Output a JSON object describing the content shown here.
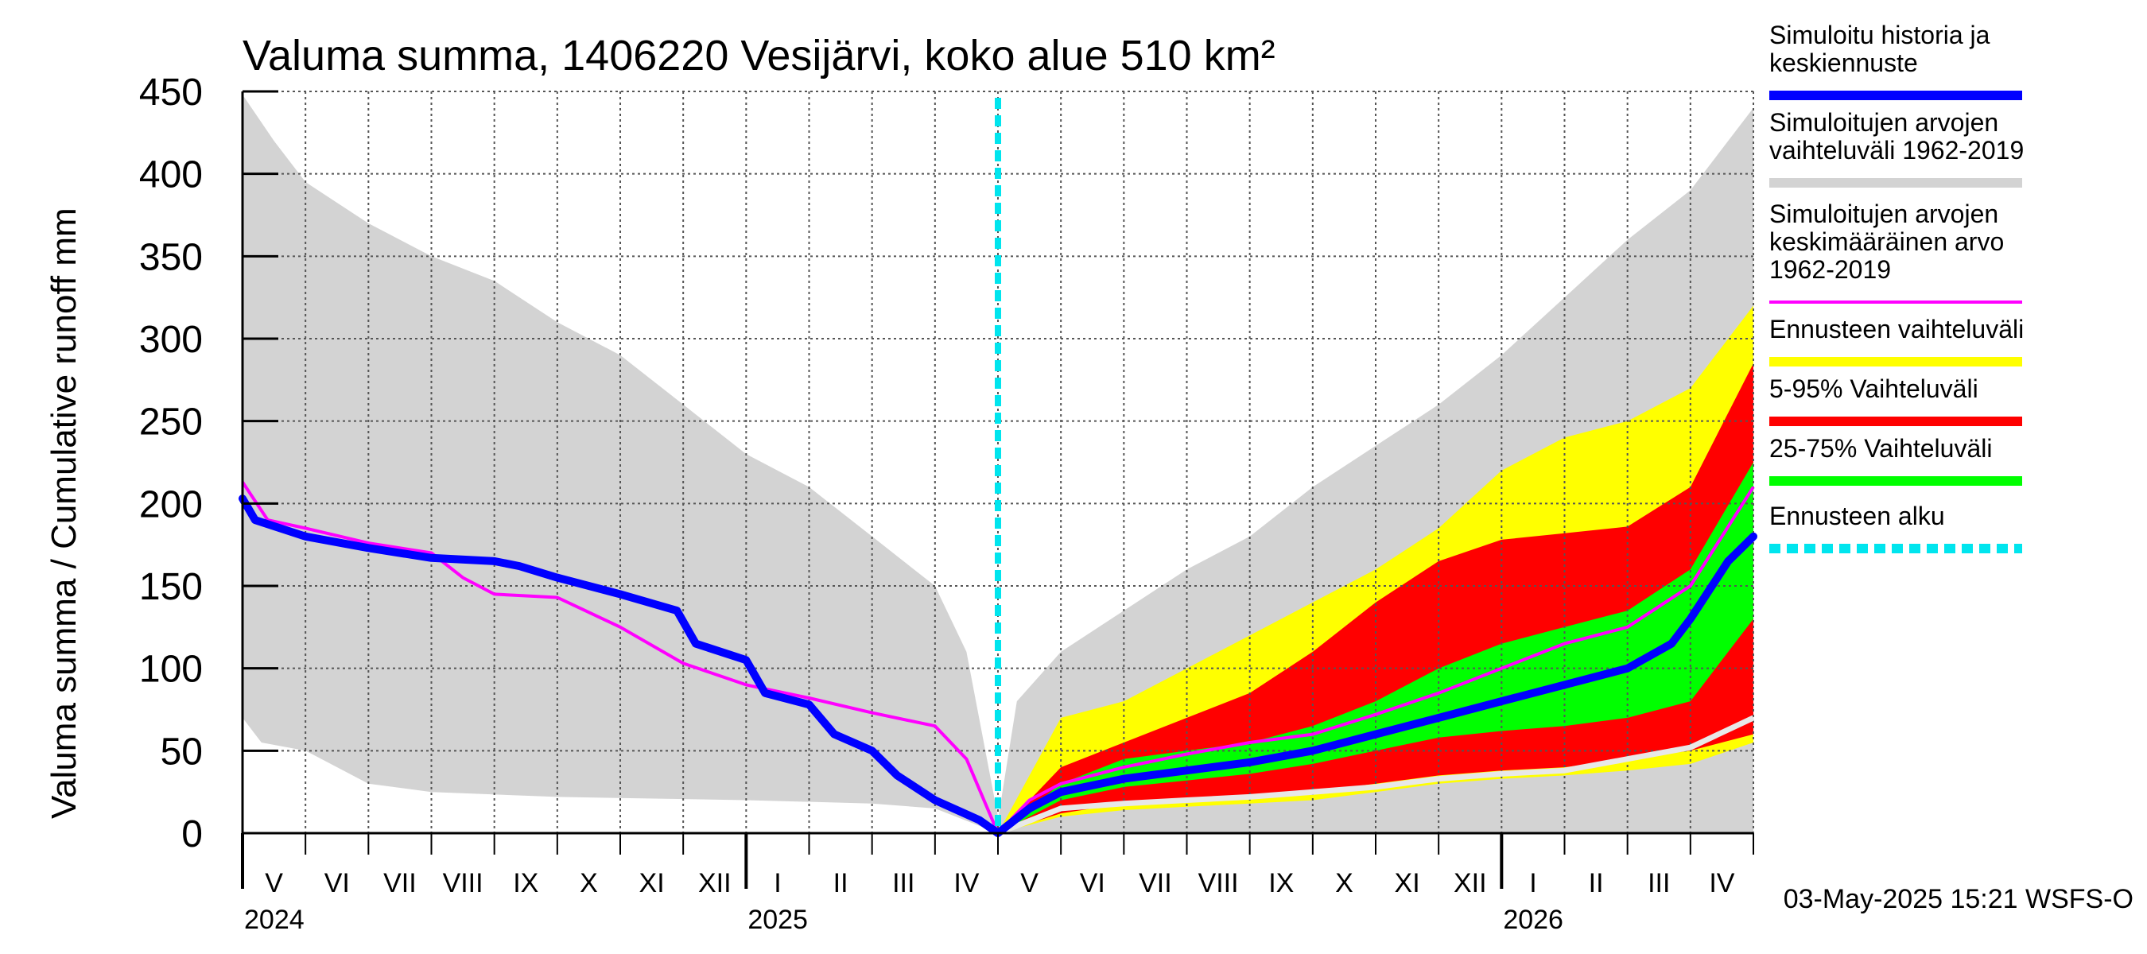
{
  "chart_data": {
    "type": "area",
    "title": "Valuma summa, 1406220 Vesijärvi, koko alue 510 km²",
    "ylabel": "Valuma summa / Cumulative runoff    mm",
    "ylim": [
      0,
      450
    ],
    "yticks": [
      0,
      50,
      100,
      150,
      200,
      250,
      300,
      350,
      400,
      450
    ],
    "x_start": "2024-05-01",
    "x_end": "2026-05-01",
    "forecast_start": "2025-05-01",
    "months": [
      "V",
      "VI",
      "VII",
      "VIII",
      "IX",
      "X",
      "XI",
      "XII",
      "I",
      "II",
      "III",
      "IV",
      "V",
      "VI",
      "VII",
      "VIII",
      "IX",
      "X",
      "XI",
      "XII",
      "I",
      "II",
      "III",
      "IV"
    ],
    "years": [
      "2024",
      "2025",
      "2026"
    ],
    "timestamp": "03-May-2025 15:21 WSFS-O",
    "series": [
      {
        "name": "hist_range_upper",
        "color": "#d3d3d3",
        "values": [
          [
            0,
            448
          ],
          [
            0.5,
            420
          ],
          [
            1,
            395
          ],
          [
            2,
            370
          ],
          [
            3,
            350
          ],
          [
            4,
            335
          ],
          [
            5,
            310
          ],
          [
            6,
            290
          ],
          [
            7,
            260
          ],
          [
            8,
            230
          ],
          [
            9,
            210
          ],
          [
            10,
            180
          ],
          [
            11,
            150
          ],
          [
            11.5,
            110
          ],
          [
            12,
            10
          ]
        ]
      },
      {
        "name": "hist_range_lower",
        "color": "#d3d3d3",
        "values": [
          [
            0,
            70
          ],
          [
            0.3,
            55
          ],
          [
            1,
            50
          ],
          [
            2,
            30
          ],
          [
            3,
            25
          ],
          [
            5,
            22
          ],
          [
            8,
            20
          ],
          [
            10,
            18
          ],
          [
            11,
            15
          ],
          [
            12,
            0
          ]
        ]
      },
      {
        "name": "fc_range_upper",
        "color": "#d3d3d3",
        "values": [
          [
            12,
            8
          ],
          [
            12.3,
            80
          ],
          [
            13,
            110
          ],
          [
            14,
            135
          ],
          [
            15,
            160
          ],
          [
            16,
            180
          ],
          [
            17,
            210
          ],
          [
            18,
            235
          ],
          [
            19,
            260
          ],
          [
            20,
            290
          ],
          [
            21,
            325
          ],
          [
            22,
            360
          ],
          [
            23,
            390
          ],
          [
            24,
            440
          ]
        ]
      },
      {
        "name": "sim_history_median",
        "label": "Simuloitu historia ja keskiennuste",
        "color": "#0000ff",
        "values": [
          [
            0,
            203
          ],
          [
            0.2,
            190
          ],
          [
            1,
            180
          ],
          [
            2,
            173
          ],
          [
            3,
            167
          ],
          [
            4,
            165
          ],
          [
            4.4,
            162
          ],
          [
            5,
            155
          ],
          [
            6,
            145
          ],
          [
            6.9,
            135
          ],
          [
            7.2,
            115
          ],
          [
            8,
            105
          ],
          [
            8.3,
            85
          ],
          [
            9,
            78
          ],
          [
            9.4,
            60
          ],
          [
            10,
            50
          ],
          [
            10.4,
            35
          ],
          [
            11,
            20
          ],
          [
            11.7,
            8
          ],
          [
            12,
            0
          ],
          [
            12.5,
            15
          ],
          [
            13,
            25
          ],
          [
            14,
            33
          ],
          [
            15,
            38
          ],
          [
            16,
            43
          ],
          [
            17,
            50
          ],
          [
            18,
            60
          ],
          [
            19,
            70
          ],
          [
            20,
            80
          ],
          [
            21,
            90
          ],
          [
            22,
            100
          ],
          [
            22.7,
            115
          ],
          [
            23,
            130
          ],
          [
            23.6,
            165
          ],
          [
            24,
            180
          ]
        ]
      },
      {
        "name": "sim_mean",
        "label": "Simuloitujen arvojen keskimääräinen arvo 1962-2019",
        "color": "#ff00ff",
        "values": [
          [
            0,
            213
          ],
          [
            0.4,
            190
          ],
          [
            1,
            185
          ],
          [
            2,
            176
          ],
          [
            3,
            170
          ],
          [
            3.5,
            155
          ],
          [
            4,
            145
          ],
          [
            5,
            143
          ],
          [
            6,
            125
          ],
          [
            7,
            103
          ],
          [
            8,
            90
          ],
          [
            9,
            82
          ],
          [
            10,
            73
          ],
          [
            11,
            65
          ],
          [
            11.5,
            45
          ],
          [
            12,
            0
          ],
          [
            12.5,
            20
          ],
          [
            13,
            30
          ],
          [
            14,
            40
          ],
          [
            15,
            48
          ],
          [
            16,
            55
          ],
          [
            17,
            60
          ],
          [
            18,
            72
          ],
          [
            19,
            85
          ],
          [
            20,
            100
          ],
          [
            21,
            115
          ],
          [
            22,
            125
          ],
          [
            22.6,
            140
          ],
          [
            23,
            150
          ],
          [
            24,
            210
          ]
        ]
      },
      {
        "name": "fc_full_range_upper",
        "label": "Ennusteen vaihteluväli",
        "color": "#ffff00",
        "values": [
          [
            12,
            0
          ],
          [
            13,
            70
          ],
          [
            14,
            80
          ],
          [
            15,
            100
          ],
          [
            16,
            120
          ],
          [
            17,
            140
          ],
          [
            18,
            160
          ],
          [
            19,
            185
          ],
          [
            20,
            220
          ],
          [
            21,
            240
          ],
          [
            22,
            250
          ],
          [
            23,
            270
          ],
          [
            24,
            320
          ]
        ]
      },
      {
        "name": "fc_full_range_lower",
        "color": "#ffff00",
        "values": [
          [
            12,
            0
          ],
          [
            13,
            10
          ],
          [
            14,
            14
          ],
          [
            15,
            16
          ],
          [
            16,
            18
          ],
          [
            17,
            20
          ],
          [
            18,
            25
          ],
          [
            19,
            30
          ],
          [
            20,
            33
          ],
          [
            21,
            35
          ],
          [
            22,
            38
          ],
          [
            23,
            42
          ],
          [
            24,
            55
          ]
        ]
      },
      {
        "name": "fc_5_95_upper",
        "label": "5-95% Vaihteluväli",
        "color": "#ff0000",
        "values": [
          [
            12,
            0
          ],
          [
            13,
            40
          ],
          [
            14,
            55
          ],
          [
            15,
            70
          ],
          [
            16,
            85
          ],
          [
            17,
            110
          ],
          [
            18,
            140
          ],
          [
            19,
            165
          ],
          [
            20,
            178
          ],
          [
            21,
            182
          ],
          [
            22,
            186
          ],
          [
            23,
            210
          ],
          [
            24,
            285
          ]
        ]
      },
      {
        "name": "fc_5_95_lower",
        "color": "#ff0000",
        "values": [
          [
            12,
            0
          ],
          [
            13,
            12
          ],
          [
            14,
            18
          ],
          [
            15,
            20
          ],
          [
            16,
            22
          ],
          [
            17,
            25
          ],
          [
            18,
            30
          ],
          [
            19,
            35
          ],
          [
            20,
            38
          ],
          [
            21,
            40
          ],
          [
            22,
            45
          ],
          [
            23,
            50
          ],
          [
            24,
            60
          ]
        ]
      },
      {
        "name": "fc_25_75_upper",
        "label": "25-75% Vaihteluväli",
        "color": "#00ff00",
        "values": [
          [
            12,
            0
          ],
          [
            13,
            30
          ],
          [
            14,
            45
          ],
          [
            15,
            50
          ],
          [
            16,
            55
          ],
          [
            17,
            65
          ],
          [
            18,
            80
          ],
          [
            19,
            100
          ],
          [
            20,
            115
          ],
          [
            21,
            125
          ],
          [
            22,
            135
          ],
          [
            23,
            160
          ],
          [
            24,
            225
          ]
        ]
      },
      {
        "name": "fc_25_75_lower",
        "color": "#00ff00",
        "values": [
          [
            12,
            0
          ],
          [
            13,
            20
          ],
          [
            14,
            28
          ],
          [
            15,
            32
          ],
          [
            16,
            36
          ],
          [
            17,
            42
          ],
          [
            18,
            50
          ],
          [
            19,
            58
          ],
          [
            20,
            62
          ],
          [
            21,
            65
          ],
          [
            22,
            70
          ],
          [
            23,
            80
          ],
          [
            24,
            130
          ]
        ]
      },
      {
        "name": "white_line",
        "color": "#e8e8e8",
        "values": [
          [
            12,
            0
          ],
          [
            13,
            15
          ],
          [
            14,
            18
          ],
          [
            15,
            20
          ],
          [
            16,
            22
          ],
          [
            17,
            25
          ],
          [
            18,
            28
          ],
          [
            19,
            33
          ],
          [
            20,
            36
          ],
          [
            21,
            38
          ],
          [
            22,
            45
          ],
          [
            23,
            52
          ],
          [
            24,
            70
          ]
        ]
      }
    ],
    "legend": [
      {
        "label": "Simuloitu historia ja\nkeskiennuste",
        "color": "#0000ff",
        "style": "solid"
      },
      {
        "label": "Simuloitujen arvojen\nvaihteluväli 1962-2019",
        "color": "#d3d3d3",
        "style": "solid"
      },
      {
        "label": "Simuloitujen arvojen\nkeskimääräinen arvo\n   1962-2019",
        "color": "#ff00ff",
        "style": "thin"
      },
      {
        "label": "Ennusteen vaihteluväli",
        "color": "#ffff00",
        "style": "solid"
      },
      {
        "label": "5-95% Vaihteluväli",
        "color": "#ff0000",
        "style": "solid"
      },
      {
        "label": "25-75% Vaihteluväli",
        "color": "#00ff00",
        "style": "solid"
      },
      {
        "label": "Ennusteen alku",
        "color": "#00e5ee",
        "style": "dashed"
      }
    ]
  }
}
